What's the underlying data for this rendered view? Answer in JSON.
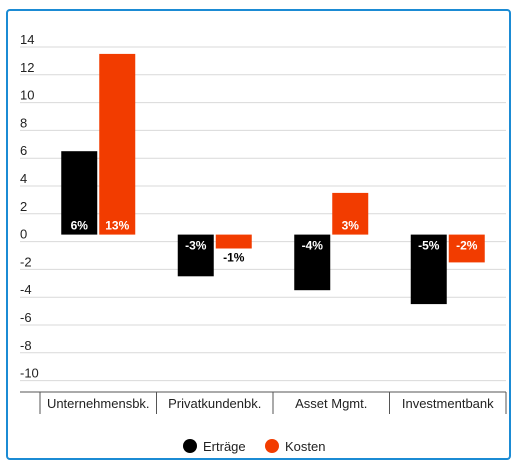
{
  "chart_data": {
    "type": "bar",
    "categories": [
      "Unternehmensbk.",
      "Privatkundenbk.",
      "Asset Mgmt.",
      "Investmentbank"
    ],
    "series": [
      {
        "name": "Erträge",
        "color": "#000000",
        "values": [
          6,
          -3,
          -4,
          -5
        ],
        "labels": [
          "6%",
          "-3%",
          "-4%",
          "-5%"
        ]
      },
      {
        "name": "Kosten",
        "color": "#f23c00",
        "values": [
          13,
          -1,
          3,
          -2
        ],
        "labels": [
          "13%",
          "-1%",
          "3%",
          "-2%"
        ]
      }
    ],
    "ylim": [
      -11,
      15
    ],
    "yticks": [
      14,
      12,
      10,
      8,
      6,
      4,
      2,
      0,
      -2,
      -4,
      -6,
      -8,
      -10
    ],
    "grid": true,
    "legend": "bottom"
  },
  "colors": {
    "border": "#1b8bd4",
    "grid": "#d9d9d9",
    "axis": "#555555"
  }
}
